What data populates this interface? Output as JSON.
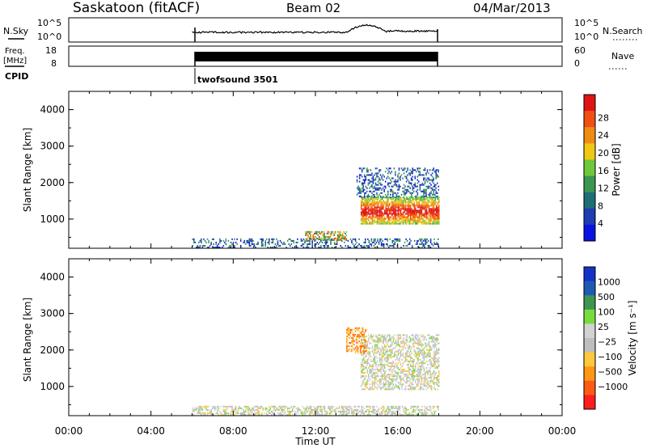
{
  "header": {
    "station": "Saskatoon (fitACF)",
    "beam": "Beam 02",
    "date": "04/Mar/2013"
  },
  "noise_panel": {
    "left_label": "N.Sky",
    "right_label": "N.Search",
    "left_ticks": [
      "10^5",
      "10^0"
    ],
    "right_ticks": [
      "10^5",
      "10^0"
    ]
  },
  "freq_panel": {
    "left_label_line1": "Freq.",
    "left_label_line2": "[MHz]",
    "right_label": "Nave",
    "left_ticks": [
      "18",
      "8"
    ],
    "right_ticks": [
      "60",
      "0"
    ]
  },
  "cpid": {
    "label": "CPID",
    "value": "twofsound 3501"
  },
  "colors": {
    "power_scale": [
      "#0a14e0",
      "#1e3cb4",
      "#1e6e78",
      "#3c9650",
      "#6ec83c",
      "#f0c814",
      "#f08c14",
      "#f05014",
      "#e01414"
    ],
    "velocity_scale": [
      "#ff1e1e",
      "#ff5a14",
      "#ff9614",
      "#ffc83c",
      "#bebebe",
      "#d2d2d2",
      "#78dc3c",
      "#3c9650",
      "#1e5ab4",
      "#1432c8"
    ]
  },
  "chart_data": [
    {
      "type": "heatmap",
      "name": "power-panel",
      "ylabel": "Slant Range [km]",
      "yticks": [
        "1000",
        "2000",
        "3000",
        "4000"
      ],
      "ylim": [
        200,
        4500
      ],
      "xlim": [
        0,
        24
      ],
      "xticks": [
        "00:00",
        "04:00",
        "08:00",
        "12:00",
        "16:00",
        "20:00",
        "00:00"
      ],
      "xlabel": "Time UT",
      "colorbar_label": "Power [dB]",
      "colorbar_ticks": [
        "4",
        "8",
        "12",
        "16",
        "20",
        "24",
        "28"
      ],
      "data_window_hours": [
        6,
        18
      ],
      "features": [
        {
          "t_start": 6.0,
          "t_end": 18.0,
          "range_min": 200,
          "range_max": 450,
          "level": "low"
        },
        {
          "t_start": 11.5,
          "t_end": 13.5,
          "range_min": 400,
          "range_max": 650,
          "level": "moderate"
        },
        {
          "t_start": 14.2,
          "t_end": 18.0,
          "range_min": 850,
          "range_max": 1600,
          "level": "high"
        },
        {
          "t_start": 14.0,
          "t_end": 18.0,
          "range_min": 1600,
          "range_max": 2400,
          "level": "low"
        }
      ]
    },
    {
      "type": "heatmap",
      "name": "velocity-panel",
      "ylabel": "Slant Range [km]",
      "yticks": [
        "1000",
        "2000",
        "3000",
        "4000"
      ],
      "ylim": [
        200,
        4500
      ],
      "xlim": [
        0,
        24
      ],
      "xticks": [
        "00:00",
        "04:00",
        "08:00",
        "12:00",
        "16:00",
        "20:00",
        "00:00"
      ],
      "xlabel": "Time UT",
      "colorbar_label": "Velocity [m s⁻¹]",
      "colorbar_ticks": [
        "1000",
        "500",
        "100",
        "25",
        "−25",
        "−100",
        "−500",
        "−1000"
      ],
      "data_window_hours": [
        6,
        18
      ],
      "features": [
        {
          "t_start": 6.0,
          "t_end": 18.0,
          "range_min": 200,
          "range_max": 450,
          "level": "ground-scatter"
        },
        {
          "t_start": 14.2,
          "t_end": 18.0,
          "range_min": 900,
          "range_max": 2400,
          "level": "ground-scatter"
        },
        {
          "t_start": 13.5,
          "t_end": 14.5,
          "range_min": 1900,
          "range_max": 2600,
          "level": "negative"
        }
      ]
    }
  ]
}
